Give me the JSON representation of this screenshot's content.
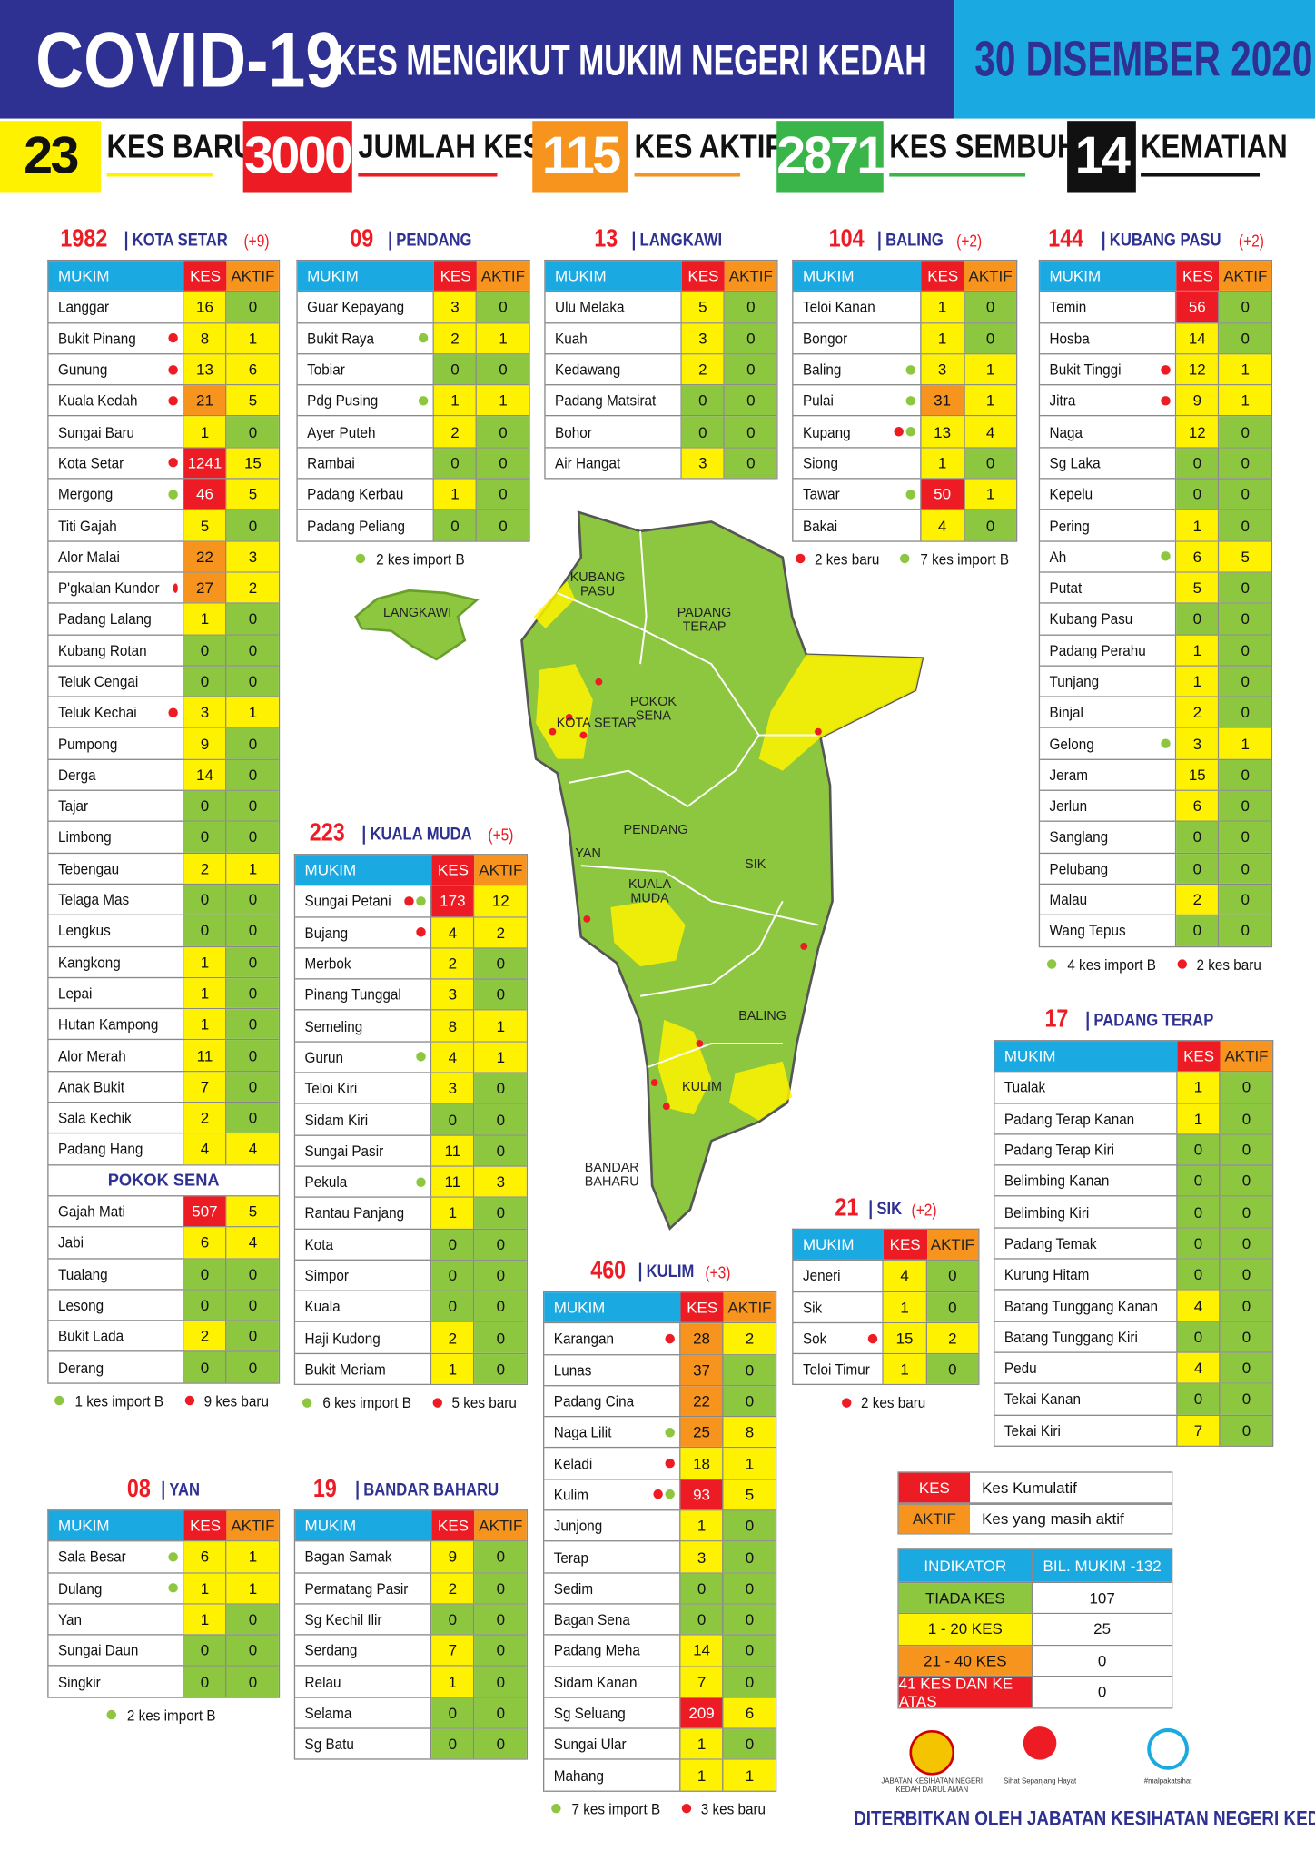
{
  "header": {
    "title": "COVID-19",
    "subtitle": "KES MENGIKUT MUKIM NEGERI KEDAH",
    "date": "30 DISEMBER 2020"
  },
  "summary": [
    {
      "value": 23,
      "label": "KES BARU",
      "color": "#fff200",
      "text_color": "#111111"
    },
    {
      "value": 3000,
      "label": "JUMLAH KES",
      "color": "#ed1c24",
      "text_color": "#ffffff"
    },
    {
      "value": 115,
      "label": "KES AKTIF",
      "color": "#f7941d",
      "text_color": "#ffffff"
    },
    {
      "value": 2871,
      "label": "KES SEMBUH",
      "color": "#39b54a",
      "text_color": "#ffffff"
    },
    {
      "value": 14,
      "label": "KEMATIAN",
      "color": "#111111",
      "text_color": "#ffffff"
    }
  ],
  "table_headers": [
    "MUKIM",
    "KES",
    "AKTIF"
  ],
  "districts": [
    {
      "count": "1982",
      "name": "KOTA SETAR",
      "change": "(+9)",
      "rows": [
        [
          "Langgar",
          16,
          0
        ],
        [
          "Bukit Pinang",
          8,
          1,
          [
            "#ed1c24"
          ]
        ],
        [
          "Gunung",
          13,
          6,
          [
            "#ed1c24"
          ]
        ],
        [
          "Kuala Kedah",
          21,
          5,
          [
            "#ed1c24"
          ]
        ],
        [
          "Sungai Baru",
          1,
          0
        ],
        [
          "Kota Setar",
          1241,
          15,
          [
            "#ed1c24"
          ]
        ],
        [
          "Mergong",
          46,
          5,
          [
            "#8dc63f"
          ]
        ],
        [
          "Titi Gajah",
          5,
          0
        ],
        [
          "Alor Malai",
          22,
          3
        ],
        [
          "P'gkalan Kundor",
          27,
          2,
          [
            "#ed1c24"
          ]
        ],
        [
          "Padang Lalang",
          1,
          0
        ],
        [
          "Kubang Rotan",
          0,
          0
        ],
        [
          "Teluk Cengai",
          0,
          0
        ],
        [
          "Teluk Kechai",
          3,
          1,
          [
            "#ed1c24"
          ]
        ],
        [
          "Pumpong",
          9,
          0
        ],
        [
          "Derga",
          14,
          0
        ],
        [
          "Tajar",
          0,
          0
        ],
        [
          "Limbong",
          0,
          0
        ],
        [
          "Tebengau",
          2,
          1
        ],
        [
          "Telaga Mas",
          0,
          0
        ],
        [
          "Lengkus",
          0,
          0
        ],
        [
          "Kangkong",
          1,
          0
        ],
        [
          "Lepai",
          1,
          0
        ],
        [
          "Hutan Kampong",
          1,
          0
        ],
        [
          "Alor Merah",
          11,
          0
        ],
        [
          "Anak Bukit",
          7,
          0
        ],
        [
          "Sala Kechik",
          2,
          0
        ],
        [
          "Padang Hang",
          4,
          4
        ]
      ],
      "subsection": {
        "name": "POKOK SENA",
        "rows": [
          [
            "Gajah Mati",
            507,
            5
          ],
          [
            "Jabi",
            6,
            4
          ],
          [
            "Tualang",
            0,
            0
          ],
          [
            "Lesong",
            0,
            0
          ],
          [
            "Bukit Lada",
            2,
            0
          ],
          [
            "Derang",
            0,
            0
          ]
        ]
      },
      "notes": [
        {
          "color": "#8dc63f",
          "text": "1 kes import B"
        },
        {
          "color": "#ed1c24",
          "text": "9 kes baru"
        }
      ]
    },
    {
      "count": "09",
      "name": "PENDANG",
      "rows": [
        [
          "Guar Kepayang",
          3,
          0
        ],
        [
          "Bukit Raya",
          2,
          1,
          [
            "#8dc63f"
          ]
        ],
        [
          "Tobiar",
          0,
          0
        ],
        [
          "Pdg Pusing",
          1,
          1,
          [
            "#8dc63f"
          ]
        ],
        [
          "Ayer Puteh",
          2,
          0
        ],
        [
          "Rambai",
          0,
          0
        ],
        [
          "Padang Kerbau",
          1,
          0
        ],
        [
          "Padang Peliang",
          0,
          0
        ]
      ],
      "notes": [
        {
          "color": "#8dc63f",
          "text": "2 kes import B"
        }
      ]
    },
    {
      "count": "13",
      "name": "LANGKAWI",
      "rows": [
        [
          "Ulu Melaka",
          5,
          0
        ],
        [
          "Kuah",
          3,
          0
        ],
        [
          "Kedawang",
          2,
          0
        ],
        [
          "Padang Matsirat",
          0,
          0
        ],
        [
          "Bohor",
          0,
          0
        ],
        [
          "Air Hangat",
          3,
          0
        ]
      ]
    },
    {
      "count": "104",
      "name": "BALING",
      "change": "(+2)",
      "rows": [
        [
          "Teloi Kanan",
          1,
          0
        ],
        [
          "Bongor",
          1,
          0
        ],
        [
          "Baling",
          3,
          1,
          [
            "#8dc63f"
          ]
        ],
        [
          "Pulai",
          31,
          1,
          [
            "#8dc63f"
          ]
        ],
        [
          "Kupang",
          13,
          4,
          [
            "#ed1c24",
            "#8dc63f"
          ]
        ],
        [
          "Siong",
          1,
          0
        ],
        [
          "Tawar",
          50,
          1,
          [
            "#8dc63f"
          ]
        ],
        [
          "Bakai",
          4,
          0
        ]
      ],
      "notes": [
        {
          "color": "#ed1c24",
          "text": "2 kes baru"
        },
        {
          "color": "#8dc63f",
          "text": "7 kes import B"
        }
      ]
    },
    {
      "count": "144",
      "name": "KUBANG PASU",
      "change": "(+2)",
      "rows": [
        [
          "Temin",
          56,
          0
        ],
        [
          "Hosba",
          14,
          0
        ],
        [
          "Bukit Tinggi",
          12,
          1,
          [
            "#ed1c24"
          ]
        ],
        [
          "Jitra",
          9,
          1,
          [
            "#ed1c24"
          ]
        ],
        [
          "Naga",
          12,
          0
        ],
        [
          "Sg Laka",
          0,
          0
        ],
        [
          "Kepelu",
          0,
          0
        ],
        [
          "Pering",
          1,
          0
        ],
        [
          "Ah",
          6,
          5,
          [
            "#8dc63f"
          ]
        ],
        [
          "Putat",
          5,
          0
        ],
        [
          "Kubang Pasu",
          0,
          0
        ],
        [
          "Padang Perahu",
          1,
          0
        ],
        [
          "Tunjang",
          1,
          0
        ],
        [
          "Binjal",
          2,
          0
        ],
        [
          "Gelong",
          3,
          1,
          [
            "#8dc63f"
          ]
        ],
        [
          "Jeram",
          15,
          0
        ],
        [
          "Jerlun",
          6,
          0
        ],
        [
          "Sanglang",
          0,
          0
        ],
        [
          "Pelubang",
          0,
          0
        ],
        [
          "Malau",
          2,
          0
        ],
        [
          "Wang Tepus",
          0,
          0
        ]
      ],
      "notes": [
        {
          "color": "#8dc63f",
          "text": "4 kes import B"
        },
        {
          "color": "#ed1c24",
          "text": "2 kes baru"
        }
      ]
    },
    {
      "count": "223",
      "name": "KUALA MUDA",
      "change": "(+5)",
      "rows": [
        [
          "Sungai Petani",
          173,
          12,
          [
            "#ed1c24",
            "#8dc63f"
          ]
        ],
        [
          "Bujang",
          4,
          2,
          [
            "#ed1c24"
          ]
        ],
        [
          "Merbok",
          2,
          0
        ],
        [
          "Pinang Tunggal",
          3,
          0
        ],
        [
          "Semeling",
          8,
          1
        ],
        [
          "Gurun",
          4,
          1,
          [
            "#8dc63f"
          ]
        ],
        [
          "Teloi Kiri",
          3,
          0
        ],
        [
          "Sidam Kiri",
          0,
          0
        ],
        [
          "Sungai Pasir",
          11,
          0
        ],
        [
          "Pekula",
          11,
          3,
          [
            "#8dc63f"
          ]
        ],
        [
          "Rantau Panjang",
          1,
          0
        ],
        [
          "Kota",
          0,
          0
        ],
        [
          "Simpor",
          0,
          0
        ],
        [
          "Kuala",
          0,
          0
        ],
        [
          "Haji Kudong",
          2,
          0
        ],
        [
          "Bukit Meriam",
          1,
          0
        ]
      ],
      "notes": [
        {
          "color": "#8dc63f",
          "text": "6 kes import B"
        },
        {
          "color": "#ed1c24",
          "text": "5 kes baru"
        }
      ]
    },
    {
      "count": "17",
      "name": "PADANG TERAP",
      "rows": [
        [
          "Tualak",
          1,
          0
        ],
        [
          "Padang Terap Kanan",
          1,
          0
        ],
        [
          "Padang Terap Kiri",
          0,
          0
        ],
        [
          "Belimbing Kanan",
          0,
          0
        ],
        [
          "Belimbing Kiri",
          0,
          0
        ],
        [
          "Padang Temak",
          0,
          0
        ],
        [
          "Kurung Hitam",
          0,
          0
        ],
        [
          "Batang Tunggang Kanan",
          4,
          0
        ],
        [
          "Batang Tunggang Kiri",
          0,
          0
        ],
        [
          "Pedu",
          4,
          0
        ],
        [
          "Tekai Kanan",
          0,
          0
        ],
        [
          "Tekai Kiri",
          7,
          0
        ]
      ]
    },
    {
      "count": "21",
      "name": "SIK",
      "change": "(+2)",
      "rows": [
        [
          "Jeneri",
          4,
          0
        ],
        [
          "Sik",
          1,
          0
        ],
        [
          "Sok",
          15,
          2,
          [
            "#ed1c24"
          ]
        ],
        [
          "Teloi Timur",
          1,
          0
        ]
      ],
      "notes": [
        {
          "color": "#ed1c24",
          "text": "2 kes baru"
        }
      ]
    },
    {
      "count": "460",
      "name": "KULIM",
      "change": "(+3)",
      "rows": [
        [
          "Karangan",
          28,
          2,
          [
            "#ed1c24"
          ]
        ],
        [
          "Lunas",
          37,
          0
        ],
        [
          "Padang Cina",
          22,
          0
        ],
        [
          "Naga Lilit",
          25,
          8,
          [
            "#8dc63f"
          ]
        ],
        [
          "Keladi",
          18,
          1,
          [
            "#ed1c24"
          ]
        ],
        [
          "Kulim",
          93,
          5,
          [
            "#ed1c24",
            "#8dc63f"
          ]
        ],
        [
          "Junjong",
          1,
          0
        ],
        [
          "Terap",
          3,
          0
        ],
        [
          "Sedim",
          0,
          0
        ],
        [
          "Bagan Sena",
          0,
          0
        ],
        [
          "Padang Meha",
          14,
          0
        ],
        [
          "Sidam Kanan",
          7,
          0
        ],
        [
          "Sg Seluang",
          209,
          6
        ],
        [
          "Sungai Ular",
          1,
          0
        ],
        [
          "Mahang",
          1,
          1
        ]
      ],
      "notes": [
        {
          "color": "#8dc63f",
          "text": "7 kes import B"
        },
        {
          "color": "#ed1c24",
          "text": "3 kes baru"
        }
      ]
    },
    {
      "count": "08",
      "name": "YAN",
      "rows": [
        [
          "Sala Besar",
          6,
          1,
          [
            "#8dc63f"
          ]
        ],
        [
          "Dulang",
          1,
          1,
          [
            "#8dc63f"
          ]
        ],
        [
          "Yan",
          1,
          0
        ],
        [
          "Sungai Daun",
          0,
          0
        ],
        [
          "Singkir",
          0,
          0
        ]
      ],
      "notes": [
        {
          "color": "#8dc63f",
          "text": "2 kes import B"
        }
      ]
    },
    {
      "count": "19",
      "name": "BANDAR BAHARU",
      "rows": [
        [
          "Bagan Samak",
          9,
          0
        ],
        [
          "Permatang Pasir",
          2,
          0
        ],
        [
          "Sg Kechil Ilir",
          0,
          0
        ],
        [
          "Serdang",
          7,
          0
        ],
        [
          "Relau",
          1,
          0
        ],
        [
          "Selama",
          0,
          0
        ],
        [
          "Sg Batu",
          0,
          0
        ]
      ]
    }
  ],
  "map": {
    "labels": [
      "KUBANG PASU",
      "PADANG TERAP",
      "LANGKAWI",
      "POKOK SENA",
      "KOTA SETAR",
      "PENDANG",
      "YAN",
      "KUALA MUDA",
      "SIK",
      "BALING",
      "KULIM",
      "BANDAR BAHARU"
    ]
  },
  "legend": [
    {
      "key": "KES",
      "text": "Kes Kumulatif",
      "color": "#ed1c24"
    },
    {
      "key": "AKTIF",
      "text": "Kes yang masih aktif",
      "color": "#f7941d"
    }
  ],
  "indicator": {
    "headers": [
      "INDIKATOR",
      "BIL. MUKIM -132"
    ],
    "rows": [
      {
        "label": "TIADA KES",
        "value": 107,
        "color": "#8dc63f"
      },
      {
        "label": "1 - 20 KES",
        "value": 25,
        "color": "#fff200"
      },
      {
        "label": "21 - 40 KES",
        "value": 0,
        "color": "#f7941d"
      },
      {
        "label": "41 KES DAN KE ATAS",
        "value": 0,
        "color": "#ed1c24"
      }
    ]
  },
  "footer": {
    "logos": [
      "JABATAN KESIHATAN NEGERI KEDAH DARUL AMAN",
      "Sihat Sepanjang Hayat",
      "#malpakatsihat"
    ],
    "publisher": "DITERBITKAN OLEH JABATAN KESIHATAN NEGERI KEDAH"
  }
}
